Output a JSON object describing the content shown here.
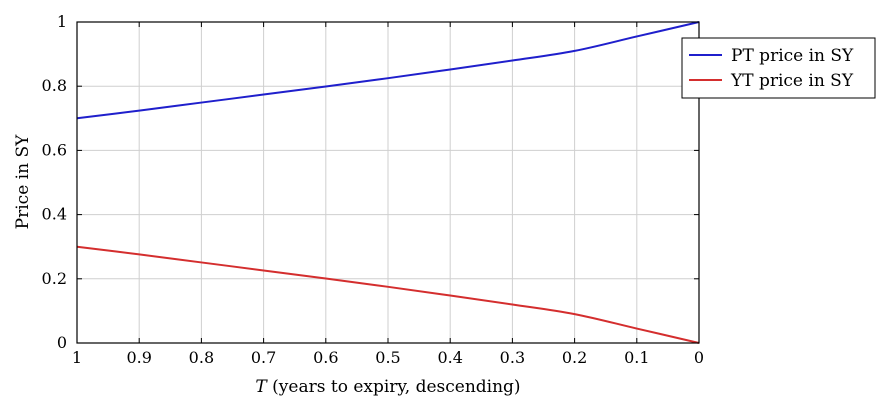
{
  "chart_data": {
    "type": "line",
    "title": "",
    "xlabel_italic": "T",
    "xlabel_rest": " (years to expiry, descending)",
    "ylabel": "Price in SY",
    "x_reversed": true,
    "xlim": [
      1,
      0
    ],
    "ylim": [
      0,
      1
    ],
    "xticks": [
      1,
      0.9,
      0.8,
      0.7,
      0.6,
      0.5,
      0.4,
      0.3,
      0.2,
      0.1,
      0
    ],
    "xtick_labels": [
      "1",
      "0.9",
      "0.8",
      "0.7",
      "0.6",
      "0.5",
      "0.4",
      "0.3",
      "0.2",
      "0.1",
      "0"
    ],
    "yticks": [
      0,
      0.2,
      0.4,
      0.6,
      0.8,
      1
    ],
    "ytick_labels": [
      "0",
      "0.2",
      "0.4",
      "0.6",
      "0.8",
      "1"
    ],
    "grid": true,
    "legend_position": "top-right",
    "x": [
      1,
      0.9,
      0.8,
      0.7,
      0.6,
      0.5,
      0.4,
      0.3,
      0.2,
      0.1,
      0
    ],
    "series": [
      {
        "name": "PT price in SY",
        "color": "#1f1fcc",
        "values": [
          0.7,
          0.724,
          0.749,
          0.774,
          0.799,
          0.825,
          0.852,
          0.88,
          0.91,
          0.955,
          1.0
        ]
      },
      {
        "name": "YT price in SY",
        "color": "#d42e2e",
        "values": [
          0.3,
          0.276,
          0.251,
          0.226,
          0.201,
          0.175,
          0.148,
          0.12,
          0.09,
          0.045,
          0.0
        ]
      }
    ]
  }
}
